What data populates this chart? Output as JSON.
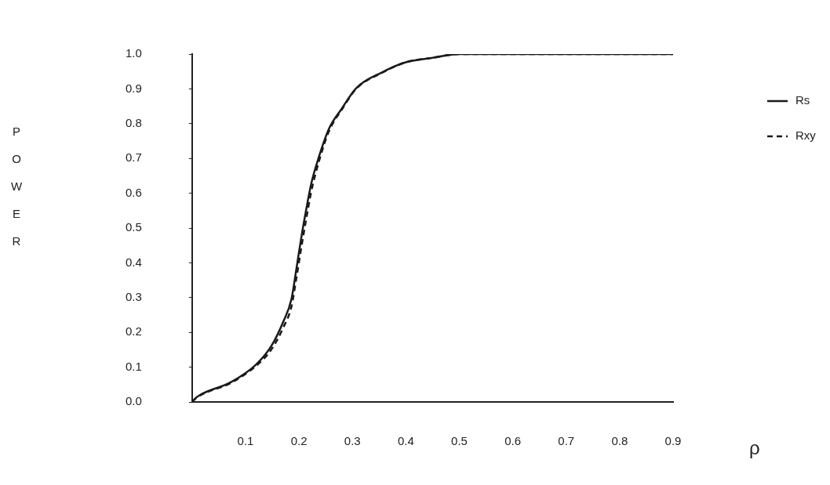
{
  "chart_data": {
    "type": "line",
    "xlabel": "ρ",
    "ylabel": "POWER",
    "xlim": [
      0,
      0.9
    ],
    "xticks": [
      0.1,
      0.2,
      0.3,
      0.4,
      0.5,
      0.6,
      0.7,
      0.8,
      0.9
    ],
    "ylim": [
      0,
      1
    ],
    "yticks": [
      {
        "value": 0,
        "label": "0.0"
      },
      {
        "value": 0.1,
        "label": "0.1"
      },
      {
        "value": 0.2,
        "label": "0.2"
      },
      {
        "value": 0.3,
        "label": "0.3"
      },
      {
        "value": 0.4,
        "label": "0.4"
      },
      {
        "value": 0.5,
        "label": "0.5"
      },
      {
        "value": 0.6,
        "label": "0.6"
      },
      {
        "value": 0.7,
        "label": "0.7"
      },
      {
        "value": 0.8,
        "label": "0.8"
      },
      {
        "value": 0.9,
        "label": "0.9"
      },
      {
        "value": 1,
        "label": "1.0"
      }
    ],
    "grid": false,
    "legend": "right",
    "marker": "none",
    "x": [
      0,
      0.008,
      0.073,
      0.12,
      0.148,
      0.171,
      0.186,
      0.195,
      0.205,
      0.214,
      0.223,
      0.238,
      0.256,
      0.28,
      0.307,
      0.355,
      0.401,
      0.449,
      0.5,
      0.9
    ],
    "series": [
      {
        "name": "Rs",
        "color": "#1a1a1a",
        "line_style": "solid",
        "values": [
          0,
          0.013,
          0.057,
          0.108,
          0.16,
          0.232,
          0.296,
          0.381,
          0.479,
          0.557,
          0.628,
          0.708,
          0.785,
          0.843,
          0.902,
          0.947,
          0.977,
          0.989,
          1,
          1
        ]
      },
      {
        "name": "Rxy",
        "color": "#1a1a1a",
        "line_style": "dashed",
        "values": [
          0,
          0.012,
          0.055,
          0.104,
          0.15,
          0.215,
          0.275,
          0.355,
          0.45,
          0.53,
          0.605,
          0.695,
          0.778,
          0.84,
          0.9,
          0.946,
          0.977,
          0.989,
          1,
          1
        ]
      }
    ]
  }
}
